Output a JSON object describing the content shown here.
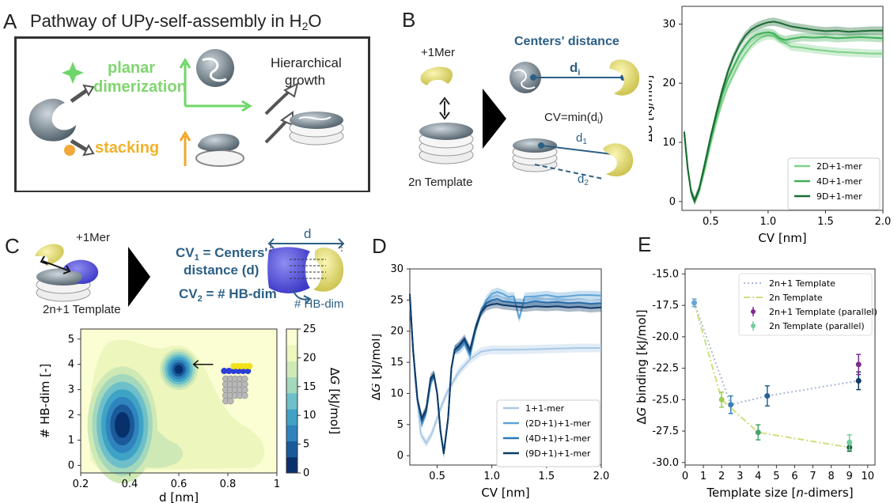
{
  "panels": {
    "A": {
      "letter": "A",
      "title": "Pathway of UPy-self-assembly in H",
      "title_sub": "2",
      "title_end": "O",
      "planar_line1": "planar",
      "planar_line2": "dimerization",
      "stacking": "stacking",
      "hier_line1": "Hierarchical",
      "hier_line2": "growth"
    },
    "B": {
      "letter": "B",
      "mer": "+1Mer",
      "template": "2n Template",
      "centers": "Centers' distance",
      "di": "d",
      "di_sub": "i",
      "cv": "CV=min(d",
      "cv_sub": "i",
      "cv_end": ")",
      "d1": "d",
      "d1_sub": "1",
      "d2": "d",
      "d2_sub": "2"
    },
    "C": {
      "letter": "C",
      "mer": "+1Mer",
      "template": "2n+1 Template",
      "cv1_a": "CV",
      "cv1_sub": "1",
      "cv1_b": " = Centers'",
      "cv1_c": "distance (d)",
      "cv2_a": "CV",
      "cv2_sub": "2",
      "cv2_b": " = # HB-dim",
      "d_label": "d",
      "hb_label": "# HB-dim"
    },
    "D": {
      "letter": "D"
    },
    "E": {
      "letter": "E"
    }
  },
  "chart_data": [
    {
      "id": "B",
      "type": "line",
      "xlabel": "CV [nm]",
      "ylabel": "ΔG [kJ/mol]",
      "xlim": [
        0.25,
        2.0
      ],
      "ylim": [
        -1.5,
        33
      ],
      "xticks": [
        0.5,
        1.0,
        1.5,
        2.0
      ],
      "yticks": [
        0,
        10,
        20,
        30
      ],
      "legend_position": "lower-right",
      "series": [
        {
          "name": "2D+1-mer",
          "color": "#7fd28a",
          "x": [
            0.27,
            0.3,
            0.33,
            0.36,
            0.4,
            0.45,
            0.5,
            0.55,
            0.6,
            0.65,
            0.7,
            0.75,
            0.8,
            0.85,
            0.9,
            0.95,
            1.0,
            1.05,
            1.1,
            1.15,
            1.2,
            1.3,
            1.4,
            1.5,
            1.6,
            1.7,
            1.8,
            1.9,
            2.0
          ],
          "y": [
            11.5,
            5.5,
            1.6,
            0.1,
            1.8,
            5.5,
            9.8,
            13.5,
            16.8,
            19.5,
            21.5,
            23.5,
            25.0,
            26.3,
            27.2,
            27.8,
            28.1,
            28.0,
            27.4,
            26.8,
            26.2,
            26.0,
            25.7,
            25.5,
            25.3,
            25.2,
            25.1,
            25.0,
            25.0
          ]
        },
        {
          "name": "4D+1-mer",
          "color": "#3fae58",
          "x": [
            0.27,
            0.3,
            0.33,
            0.36,
            0.4,
            0.45,
            0.5,
            0.55,
            0.6,
            0.65,
            0.7,
            0.75,
            0.8,
            0.85,
            0.9,
            0.95,
            1.0,
            1.05,
            1.1,
            1.15,
            1.2,
            1.3,
            1.4,
            1.5,
            1.6,
            1.7,
            1.8,
            1.9,
            2.0
          ],
          "y": [
            11.5,
            5.5,
            1.6,
            0.1,
            2.0,
            6.0,
            10.5,
            14.5,
            18.0,
            20.8,
            22.8,
            24.8,
            26.3,
            27.5,
            28.2,
            28.5,
            28.6,
            28.4,
            27.6,
            27.3,
            27.5,
            27.8,
            27.7,
            27.8,
            27.6,
            27.7,
            27.8,
            27.7,
            27.6
          ]
        },
        {
          "name": "9D+1-mer",
          "color": "#1a6b33",
          "x": [
            0.27,
            0.3,
            0.33,
            0.36,
            0.4,
            0.45,
            0.5,
            0.55,
            0.6,
            0.65,
            0.7,
            0.75,
            0.8,
            0.85,
            0.9,
            0.95,
            1.0,
            1.05,
            1.1,
            1.15,
            1.2,
            1.3,
            1.4,
            1.5,
            1.6,
            1.7,
            1.8,
            1.9,
            2.0
          ],
          "y": [
            11.8,
            5.6,
            1.6,
            0.1,
            2.2,
            6.5,
            11.0,
            15.0,
            18.8,
            22.0,
            24.5,
            26.5,
            28.0,
            29.0,
            29.6,
            30.0,
            30.3,
            30.4,
            30.2,
            29.9,
            29.6,
            29.3,
            29.0,
            28.8,
            28.9,
            28.7,
            28.8,
            28.9,
            28.9
          ]
        }
      ]
    },
    {
      "id": "C",
      "type": "heatmap",
      "xlabel": "d [nm]",
      "ylabel": "# HB-dim [-]",
      "colorbar_label": "ΔG [kJ/mol]",
      "xlim": [
        0.2,
        1.0
      ],
      "ylim": [
        -0.3,
        5.4
      ],
      "xticks": [
        "0.2",
        "0.4",
        "0.6",
        "0.8",
        "1"
      ],
      "yticks": [
        "0",
        "1",
        "2",
        "3",
        "4",
        "5"
      ],
      "cbar_ticks": [
        "0",
        "5",
        "10",
        "15",
        "20",
        "25"
      ],
      "basins": [
        {
          "x": 0.37,
          "y": 1.6,
          "depth": 25
        },
        {
          "x": 0.6,
          "y": 3.8,
          "depth": 22
        }
      ]
    },
    {
      "id": "D",
      "type": "line",
      "xlabel": "CV [nm]",
      "ylabel": "ΔG [kJ/mol]",
      "xlim": [
        0.25,
        2.0
      ],
      "ylim": [
        -1.5,
        30
      ],
      "xticks": [
        0.5,
        1.0,
        1.5,
        2.0
      ],
      "yticks": [
        0,
        5,
        10,
        15,
        20,
        25,
        30
      ],
      "legend_position": "lower-right",
      "series": [
        {
          "name": "1+1-mer",
          "color": "#a9c8e6",
          "x": [
            0.25,
            0.3,
            0.35,
            0.4,
            0.45,
            0.5,
            0.55,
            0.6,
            0.7,
            0.8,
            0.9,
            1.0,
            1.2,
            1.4,
            1.6,
            1.8,
            2.0
          ],
          "y": [
            25,
            12,
            3.5,
            2.0,
            3.5,
            6.0,
            8.5,
            10.5,
            13.5,
            15.5,
            16.7,
            17.0,
            17.0,
            17.1,
            17.2,
            17.3,
            17.3
          ]
        },
        {
          "name": "(2D+1)+1-mer",
          "color": "#5ea4d6",
          "x": [
            0.25,
            0.28,
            0.32,
            0.36,
            0.4,
            0.44,
            0.47,
            0.5,
            0.53,
            0.56,
            0.6,
            0.63,
            0.66,
            0.7,
            0.75,
            0.8,
            0.85,
            0.9,
            0.95,
            1.0,
            1.05,
            1.1,
            1.15,
            1.2,
            1.25,
            1.3,
            1.4,
            1.5,
            1.6,
            1.7,
            1.8,
            1.9,
            2.0
          ],
          "y": [
            25.5,
            17,
            9,
            5.0,
            7,
            11.5,
            13,
            10,
            4,
            0.5,
            6,
            14,
            17,
            17,
            18,
            16,
            20,
            23,
            25,
            26,
            26.3,
            26,
            25.5,
            25.6,
            22,
            25.5,
            25.6,
            25.8,
            25.5,
            25.6,
            25.8,
            25.8,
            25.7
          ]
        },
        {
          "name": "(4D+1)+1-mer",
          "color": "#2f78b8",
          "x": [
            0.25,
            0.28,
            0.32,
            0.36,
            0.4,
            0.44,
            0.47,
            0.5,
            0.53,
            0.56,
            0.6,
            0.63,
            0.66,
            0.7,
            0.75,
            0.8,
            0.85,
            0.9,
            0.95,
            1.0,
            1.05,
            1.1,
            1.2,
            1.3,
            1.4,
            1.5,
            1.6,
            1.7,
            1.8,
            1.9,
            2.0
          ],
          "y": [
            25.5,
            17,
            9,
            5.5,
            7,
            12,
            13,
            10,
            4,
            0.5,
            6,
            14,
            17,
            17.5,
            18.5,
            16.5,
            20.5,
            23,
            24.5,
            25,
            25.2,
            24.8,
            24.6,
            24.5,
            24.8,
            24.6,
            24.7,
            24.5,
            24.6,
            24.4,
            24.5
          ]
        },
        {
          "name": "(9D+1)+1-mer",
          "color": "#0f3a66",
          "x": [
            0.25,
            0.28,
            0.32,
            0.36,
            0.4,
            0.44,
            0.47,
            0.5,
            0.53,
            0.56,
            0.6,
            0.63,
            0.66,
            0.7,
            0.75,
            0.8,
            0.85,
            0.9,
            0.95,
            1.0,
            1.05,
            1.1,
            1.2,
            1.3,
            1.4,
            1.5,
            1.6,
            1.7,
            1.8,
            1.9,
            2.0
          ],
          "y": [
            26,
            17,
            9,
            6,
            7.5,
            12.5,
            13,
            10,
            4,
            0.3,
            6,
            14,
            17,
            17.7,
            18.8,
            17,
            20.5,
            23,
            24,
            24.3,
            24.4,
            24.2,
            24,
            23.8,
            24,
            23.9,
            24,
            23.8,
            23.9,
            23.7,
            23.8
          ]
        }
      ]
    },
    {
      "id": "E",
      "type": "scatter",
      "xlabel": "Template size [n-dimers]",
      "ylabel": "ΔG binding [kJ/mol]",
      "xlim": [
        0,
        10.4
      ],
      "ylim": [
        -30.2,
        -14.6
      ],
      "xticks": [
        0,
        1,
        2,
        3,
        4,
        5,
        6,
        7,
        8,
        9,
        10
      ],
      "yticks": [
        -15.0,
        -17.5,
        -20.0,
        -22.5,
        -25.0,
        -27.5,
        -30.0
      ],
      "legend_position": "upper-right",
      "series": [
        {
          "name": "2n+1 Template",
          "color": "#a9b7d6",
          "style": "dotted",
          "x": [
            0.5,
            2.5,
            4.5,
            9.5
          ],
          "y": [
            -17.3,
            -25.4,
            -24.7,
            -23.5
          ]
        },
        {
          "name": "2n Template",
          "color": "#cce07a",
          "style": "dashdot",
          "x": [
            0.5,
            2,
            4,
            9
          ],
          "y": [
            -17.3,
            -25.0,
            -27.6,
            -28.8
          ]
        },
        {
          "name": "2n+1 Template (parallel)",
          "color": "#7b2a8c",
          "style": "errorbar",
          "x": [
            9.5
          ],
          "y": [
            -22.2
          ],
          "err": [
            0.8
          ]
        },
        {
          "name": "2n Template (parallel)",
          "color": "#6fcf9d",
          "style": "errorbar",
          "x": [
            9
          ],
          "y": [
            -28.4
          ],
          "err": [
            0.6
          ]
        },
        {
          "name": "",
          "color": "",
          "style": "points",
          "points": [
            {
              "x": 0.5,
              "y": -17.3,
              "err": 0.3,
              "color": "#6aa4d6"
            },
            {
              "x": 2,
              "y": -25.0,
              "err": 0.6,
              "color": "#9ccd56"
            },
            {
              "x": 2.5,
              "y": -25.4,
              "err": 0.7,
              "color": "#3a7fb8"
            },
            {
              "x": 4,
              "y": -27.6,
              "err": 0.6,
              "color": "#4aa36a"
            },
            {
              "x": 4.5,
              "y": -24.7,
              "err": 0.8,
              "color": "#245f97"
            },
            {
              "x": 9,
              "y": -28.8,
              "err": 0.3,
              "color": "#1c5a3a"
            },
            {
              "x": 9.5,
              "y": -23.5,
              "err": 0.7,
              "color": "#0f3a66"
            }
          ]
        }
      ]
    }
  ]
}
